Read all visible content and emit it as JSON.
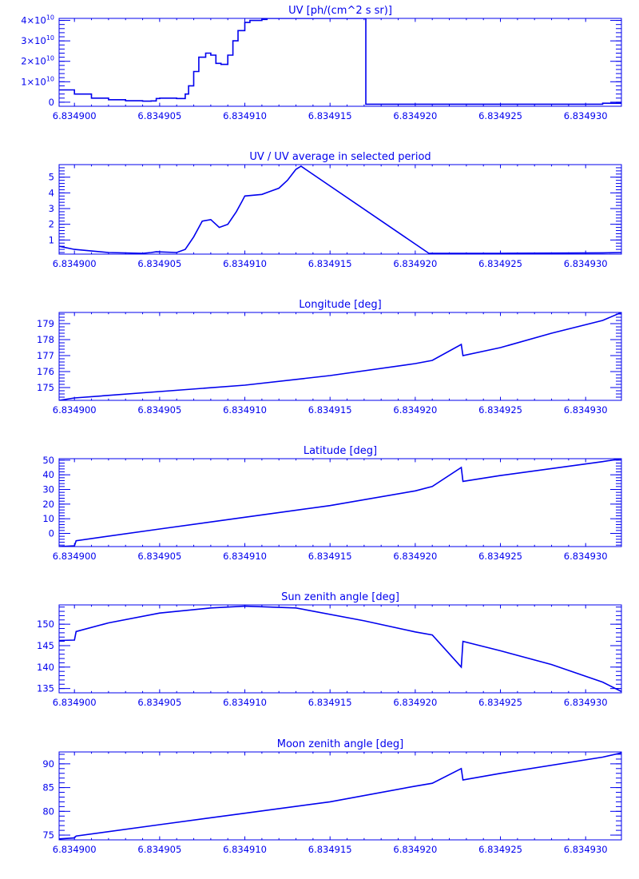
{
  "colors": {
    "plot": "#0000ee",
    "background": "#ffffff"
  },
  "x_ticks": [
    "6.834900",
    "6.834905",
    "6.834910",
    "6.834915",
    "6.834920",
    "6.834925",
    "6.834930"
  ],
  "chart_data": [
    {
      "type": "line",
      "title": "UV [ph/(cm^2 s sr)]",
      "xlabel": "",
      "ylabel": "",
      "xlim": [
        6.8348991,
        6.8349321
      ],
      "ylim": [
        -2000000000.0,
        41000000000.0
      ],
      "y_ticks": [
        {
          "value": 0,
          "label": "0"
        },
        {
          "value": 10000000000.0,
          "label": "1×10",
          "exp": "10"
        },
        {
          "value": 20000000000.0,
          "label": "2×10",
          "exp": "10"
        },
        {
          "value": 30000000000.0,
          "label": "3×10",
          "exp": "10"
        },
        {
          "value": 40000000000.0,
          "label": "4×10",
          "exp": "10"
        }
      ],
      "step": true,
      "series": [
        {
          "x": [
            6.8348991,
            6.8349,
            6.834901,
            6.834902,
            6.834903,
            6.834904,
            6.8349045,
            6.8349048,
            6.834905,
            6.834906,
            6.8349065,
            6.8349067,
            6.834907,
            6.8349073,
            6.8349077,
            6.834908,
            6.8349083,
            6.8349086,
            6.834909,
            6.8349093,
            6.8349096,
            6.83491,
            6.8349103,
            6.834911,
            6.8349113,
            6.834917,
            6.8349171,
            6.834925,
            6.834931,
            6.8349321
          ],
          "y": [
            6000000000.0,
            4000000000.0,
            2000000000.0,
            1200000000.0,
            700000000.0,
            500000000.0,
            600000000.0,
            1800000000.0,
            2000000000.0,
            1800000000.0,
            4000000000.0,
            8000000000.0,
            15000000000.0,
            22000000000.0,
            24000000000.0,
            23000000000.0,
            19000000000.0,
            18500000000.0,
            23000000000.0,
            30000000000.0,
            35000000000.0,
            39000000000.0,
            40000000000.0,
            40500000000.0,
            41000000000.0,
            41000000000.0,
            -1000000000.0,
            -1000000000.0,
            -500000000.0,
            0
          ]
        }
      ]
    },
    {
      "type": "line",
      "title": "UV / UV average in selected period",
      "xlabel": "",
      "ylabel": "",
      "xlim": [
        6.8348991,
        6.8349321
      ],
      "ylim": [
        0.1,
        5.8
      ],
      "y_ticks": [
        {
          "value": 1,
          "label": "1"
        },
        {
          "value": 2,
          "label": "2"
        },
        {
          "value": 3,
          "label": "3"
        },
        {
          "value": 4,
          "label": "4"
        },
        {
          "value": 5,
          "label": "5"
        }
      ],
      "step": false,
      "series": [
        {
          "x": [
            6.8348991,
            6.8349,
            6.834902,
            6.834904,
            6.8349045,
            6.8349048,
            6.834906,
            6.8349065,
            6.834907,
            6.8349075,
            6.834908,
            6.8349085,
            6.834909,
            6.8349095,
            6.8349098,
            6.83491,
            6.834911,
            6.8349115,
            6.834912,
            6.8349125,
            6.834913,
            6.8349133,
            6.8349208,
            6.834925,
            6.834931,
            6.8349321
          ],
          "y": [
            0.6,
            0.4,
            0.2,
            0.15,
            0.2,
            0.25,
            0.2,
            0.4,
            1.2,
            2.2,
            2.3,
            1.8,
            2.0,
            2.8,
            3.4,
            3.8,
            3.9,
            4.1,
            4.3,
            4.8,
            5.5,
            5.7,
            0.15,
            0.15,
            0.18,
            0.2
          ]
        }
      ]
    },
    {
      "type": "line",
      "title": "Longitude [deg]",
      "xlabel": "",
      "ylabel": "",
      "xlim": [
        6.8348991,
        6.8349321
      ],
      "ylim": [
        174.2,
        179.7
      ],
      "y_ticks": [
        {
          "value": 175,
          "label": "175"
        },
        {
          "value": 176,
          "label": "176"
        },
        {
          "value": 177,
          "label": "177"
        },
        {
          "value": 178,
          "label": "178"
        },
        {
          "value": 179,
          "label": "179"
        }
      ],
      "step": false,
      "series": [
        {
          "x": [
            6.8348991,
            6.8349,
            6.834905,
            6.83491,
            6.834915,
            6.83492,
            6.834921,
            6.8349227,
            6.8349228,
            6.834925,
            6.834928,
            6.834931,
            6.8349321
          ],
          "y": [
            174.2,
            174.35,
            174.75,
            175.15,
            175.75,
            176.5,
            176.7,
            177.7,
            177.0,
            177.5,
            178.4,
            179.2,
            179.7
          ]
        }
      ]
    },
    {
      "type": "line",
      "title": "Latitude [deg]",
      "xlabel": "",
      "ylabel": "",
      "xlim": [
        6.8348991,
        6.8349321
      ],
      "ylim": [
        -9,
        51
      ],
      "y_ticks": [
        {
          "value": 0,
          "label": "0"
        },
        {
          "value": 10,
          "label": "10"
        },
        {
          "value": 20,
          "label": "20"
        },
        {
          "value": 30,
          "label": "30"
        },
        {
          "value": 40,
          "label": "40"
        },
        {
          "value": 50,
          "label": "50"
        }
      ],
      "step": false,
      "series": [
        {
          "x": [
            6.8348991,
            6.8349,
            6.8349001,
            6.834905,
            6.83491,
            6.834915,
            6.83492,
            6.834921,
            6.8349227,
            6.8349228,
            6.834925,
            6.834931,
            6.8349321
          ],
          "y": [
            -9,
            -8.5,
            -5,
            3,
            11,
            19,
            29,
            32,
            45,
            35.5,
            39.5,
            49,
            51
          ]
        }
      ]
    },
    {
      "type": "line",
      "title": "Sun zenith angle [deg]",
      "xlabel": "",
      "ylabel": "",
      "xlim": [
        6.8348991,
        6.8349321
      ],
      "ylim": [
        134,
        154.5
      ],
      "y_ticks": [
        {
          "value": 135,
          "label": "135"
        },
        {
          "value": 140,
          "label": "140"
        },
        {
          "value": 145,
          "label": "145"
        },
        {
          "value": 150,
          "label": "150"
        }
      ],
      "step": false,
      "series": [
        {
          "x": [
            6.8348991,
            6.8349,
            6.8349001,
            6.834902,
            6.834905,
            6.834908,
            6.83491,
            6.834913,
            6.834917,
            6.83492,
            6.834921,
            6.8349227,
            6.8349228,
            6.834925,
            6.834928,
            6.834931,
            6.8349321
          ],
          "y": [
            146.2,
            146.3,
            148.3,
            150.3,
            152.6,
            153.8,
            154.2,
            153.8,
            150.8,
            148.2,
            147.5,
            140.0,
            146.0,
            143.8,
            140.6,
            136.5,
            134.3
          ]
        }
      ]
    },
    {
      "type": "line",
      "title": "Moon zenith angle [deg]",
      "xlabel": "",
      "ylabel": "",
      "xlim": [
        6.8348991,
        6.8349321
      ],
      "ylim": [
        74,
        92.5
      ],
      "y_ticks": [
        {
          "value": 75,
          "label": "75"
        },
        {
          "value": 80,
          "label": "80"
        },
        {
          "value": 85,
          "label": "85"
        },
        {
          "value": 90,
          "label": "90"
        }
      ],
      "step": false,
      "series": [
        {
          "x": [
            6.8348991,
            6.8349,
            6.8349001,
            6.834905,
            6.83491,
            6.834915,
            6.83492,
            6.834921,
            6.8349227,
            6.8349228,
            6.834925,
            6.834931,
            6.8349321
          ],
          "y": [
            74.2,
            74.4,
            74.8,
            77.2,
            79.6,
            82.0,
            85.3,
            85.9,
            89.0,
            86.6,
            88.0,
            91.4,
            92.3
          ]
        }
      ]
    }
  ]
}
